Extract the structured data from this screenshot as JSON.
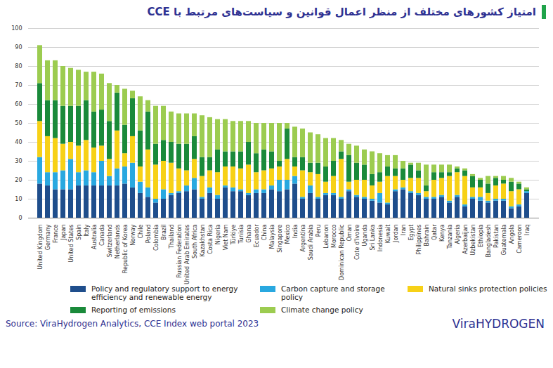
{
  "chart_data": {
    "type": "bar",
    "title": "امتیاز کشورهای مختلف از منظر اعمال قوانین و سیاست‌های مرتبط با CCE",
    "source": "Source: ViraHydrogen Analytics, CCE Index web portal 2023",
    "logo": "ViraHYDROGEN",
    "stacked": true,
    "grid": true,
    "legend": "bottom",
    "ylim": [
      0,
      100
    ],
    "yticks": [
      0,
      10,
      20,
      30,
      40,
      50,
      60,
      70,
      80,
      90,
      100
    ],
    "categories": [
      "United Kingdom",
      "Germany",
      "France",
      "Japan",
      "United States",
      "Spain",
      "Italy",
      "Australia",
      "Canada",
      "Switzerland",
      "Netherlands",
      "Republic of Korea",
      "Norway",
      "Chile",
      "Poland",
      "Colombia",
      "Brazil",
      "Thailand",
      "Russian Federation",
      "United Arab Emirates",
      "South Africa",
      "Kazakhstan",
      "Costa Rica",
      "Nigeria",
      "Viet Nam",
      "Türkiye",
      "Tunisia",
      "Ghana",
      "Ecuador",
      "China",
      "Malaysia",
      "Singapore",
      "Mexico",
      "India",
      "Argentina",
      "Saudi Arabia",
      "Peru",
      "Lebanon",
      "Morocco",
      "Dominican Republic",
      "Oman",
      "Cote d'Ivoire",
      "Uganda",
      "Sri Lanka",
      "Indonesia",
      "Kuwait",
      "Jordan",
      "Iran",
      "Egypt",
      "Philippines",
      "Bahrain",
      "Qatar",
      "Kenya",
      "Tanzania",
      "Algeria",
      "Azerbaijan",
      "Uzbekistan",
      "Ethiopia",
      "Bangladesh",
      "Pakistan",
      "Guatemala",
      "Angola",
      "Cameroon",
      "Iraq"
    ],
    "series": [
      {
        "name": "Policy and regulatory support to energy efficiency and renewable energy",
        "color": "#1f4e8c",
        "values": [
          18,
          17,
          15,
          15,
          15,
          17,
          17,
          17,
          17,
          17,
          17,
          18,
          16,
          13,
          11,
          8,
          10,
          12,
          13,
          14,
          15,
          10,
          13,
          10,
          16,
          14,
          14,
          12,
          13,
          13,
          15,
          14,
          15,
          18,
          10,
          13,
          10,
          12,
          12,
          10,
          14,
          11,
          10,
          9,
          8,
          7,
          14,
          15,
          13,
          12,
          10,
          10,
          11,
          8,
          11,
          6,
          10,
          9,
          8,
          9,
          9,
          5,
          6,
          13
        ]
      },
      {
        "name": "Carbon capture and storage policy",
        "color": "#29a8e0",
        "values": [
          14,
          7,
          9,
          10,
          16,
          7,
          8,
          7,
          13,
          5,
          9,
          9,
          13,
          6,
          5,
          2,
          5,
          1,
          1,
          3,
          6,
          1,
          3,
          2,
          1,
          2,
          1,
          1,
          2,
          2,
          2,
          6,
          5,
          4,
          1,
          4,
          1,
          1,
          1,
          1,
          1,
          1,
          1,
          1,
          5,
          1,
          1,
          1,
          1,
          1,
          1,
          1,
          1,
          1,
          1,
          1,
          1,
          2,
          1,
          1,
          1,
          1,
          1,
          1
        ]
      },
      {
        "name": "Natural sinks protection policies",
        "color": "#f7d117",
        "values": [
          19,
          19,
          18,
          14,
          9,
          14,
          16,
          13,
          8,
          9,
          20,
          7,
          14,
          8,
          20,
          18,
          15,
          16,
          12,
          8,
          10,
          11,
          9,
          12,
          10,
          11,
          11,
          15,
          9,
          10,
          9,
          7,
          11,
          5,
          14,
          7,
          12,
          6,
          9,
          20,
          4,
          8,
          9,
          7,
          6,
          14,
          7,
          4,
          7,
          8,
          3,
          9,
          9,
          13,
          12,
          15,
          5,
          5,
          4,
          7,
          8,
          8,
          8,
          0
        ]
      },
      {
        "name": "Reporting of emissions",
        "color": "#1a8a3a",
        "values": [
          20,
          19,
          20,
          20,
          19,
          21,
          21,
          19,
          19,
          20,
          20,
          15,
          20,
          19,
          20,
          11,
          11,
          11,
          13,
          14,
          12,
          10,
          7,
          12,
          8,
          8,
          9,
          12,
          10,
          11,
          9,
          3,
          16,
          5,
          7,
          5,
          6,
          8,
          8,
          4,
          14,
          9,
          8,
          6,
          5,
          5,
          4,
          6,
          7,
          4,
          3,
          4,
          3,
          2,
          2,
          3,
          6,
          4,
          5,
          4,
          2,
          5,
          3,
          1
        ]
      },
      {
        "name": "Climate change policy",
        "color": "#9ccc50",
        "values": [
          20,
          21,
          21,
          21,
          20,
          19,
          15,
          21,
          19,
          20,
          4,
          19,
          4,
          18,
          6,
          20,
          18,
          16,
          16,
          16,
          12,
          22,
          21,
          16,
          17,
          16,
          16,
          11,
          16,
          14,
          15,
          20,
          3,
          16,
          15,
          16,
          15,
          15,
          12,
          6,
          6,
          9,
          8,
          12,
          10,
          6,
          7,
          4,
          1,
          4,
          11,
          4,
          4,
          4,
          1,
          1,
          1,
          1,
          4,
          1,
          2,
          2,
          1,
          1
        ]
      }
    ]
  }
}
